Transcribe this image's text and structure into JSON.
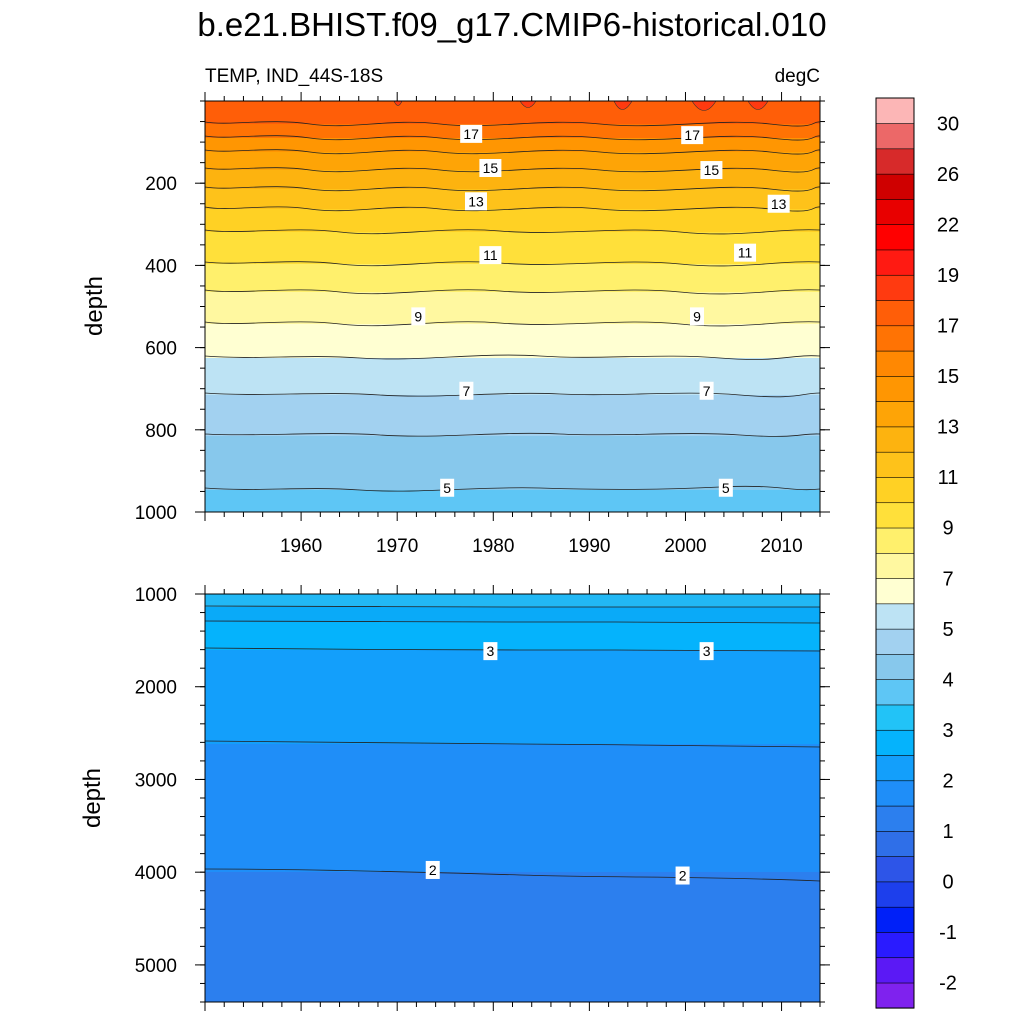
{
  "chart_data": {
    "type": "contour",
    "title": "b.e21.BHIST.f09_g17.CMIP6-historical.010",
    "left_subtitle": "TEMP, IND_44S-18S",
    "right_subtitle": "degC",
    "ylabel": "depth",
    "x_ticks": [
      "1960",
      "1970",
      "1980",
      "1990",
      "2000",
      "2010"
    ],
    "xlim": [
      1950,
      2014
    ],
    "upper_panel": {
      "ylim": [
        0,
        1000
      ],
      "y_ticks": [
        "200",
        "400",
        "600",
        "800",
        "1000"
      ]
    },
    "lower_panel": {
      "ylim": [
        1000,
        5400
      ],
      "y_ticks": [
        "1000",
        "2000",
        "3000",
        "4000",
        "5000"
      ]
    },
    "colorbar": {
      "labels": [
        "-2",
        "-1",
        "0",
        "1",
        "2",
        "3",
        "4",
        "5",
        "7",
        "9",
        "11",
        "13",
        "15",
        "17",
        "19",
        "22",
        "26",
        "30"
      ],
      "colors": [
        "#7f22ee",
        "#5b19f5",
        "#2a1bff",
        "#0020f8",
        "#1d3fec",
        "#2d55e8",
        "#2f6fe8",
        "#2c7fee",
        "#1f8ef8",
        "#139ffb",
        "#05b3fc",
        "#22c3f7",
        "#5ec6f5",
        "#87c8ec",
        "#a2d1f0",
        "#bde3f4",
        "#ffffd2",
        "#fff8a0",
        "#fff06c",
        "#ffe03a",
        "#ffd124",
        "#fec21a",
        "#fdb30f",
        "#fea406",
        "#ff9602",
        "#ff8802",
        "#ff7304",
        "#ff5e08",
        "#ff3a10",
        "#ff1a12",
        "#ff0000",
        "#e80000",
        "#cf0000",
        "#d72a2a",
        "#ec6868",
        "#fcb6b6"
      ]
    },
    "contour_labels": {
      "upper": [
        {
          "text": "17",
          "x": 1977.7,
          "y": 80
        },
        {
          "text": "17",
          "x": 2000.7,
          "y": 83
        },
        {
          "text": "15",
          "x": 1979.7,
          "y": 163
        },
        {
          "text": "15",
          "x": 2002.7,
          "y": 168
        },
        {
          "text": "13",
          "x": 1978.2,
          "y": 244
        },
        {
          "text": "13",
          "x": 2009.7,
          "y": 250
        },
        {
          "text": "11",
          "x": 1979.7,
          "y": 375
        },
        {
          "text": "11",
          "x": 2006.2,
          "y": 369
        },
        {
          "text": "9",
          "x": 1972.2,
          "y": 524
        },
        {
          "text": "9",
          "x": 2001.2,
          "y": 524
        },
        {
          "text": "7",
          "x": 1977.2,
          "y": 705
        },
        {
          "text": "7",
          "x": 2002.2,
          "y": 705
        },
        {
          "text": "5",
          "x": 1975.2,
          "y": 941
        },
        {
          "text": "5",
          "x": 2004.2,
          "y": 941
        }
      ],
      "lower": [
        {
          "text": "3",
          "x": 1979.7,
          "y": 1616
        },
        {
          "text": "3",
          "x": 2002.2,
          "y": 1616
        },
        {
          "text": "2",
          "x": 1973.7,
          "y": 3976
        },
        {
          "text": "2",
          "x": 1999.7,
          "y": 4036
        }
      ]
    }
  }
}
